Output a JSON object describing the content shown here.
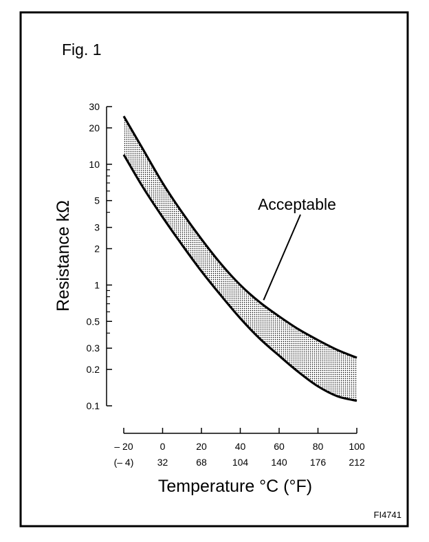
{
  "figure_label": "Fig. 1",
  "figure_code": "FI4741",
  "chart_data": {
    "type": "area",
    "title": "",
    "ylabel": "Resistance kΩ",
    "xlabel": "Temperature °C (°F)",
    "yscale": "log",
    "ylim": [
      0.1,
      30
    ],
    "xlim": [
      -20,
      100
    ],
    "y_tick_labels": [
      "30",
      "20",
      "10",
      "5",
      "3",
      "2",
      "1",
      "0.5",
      "0.3",
      "0.2",
      "0.1"
    ],
    "y_tick_values": [
      30,
      20,
      10,
      5,
      3,
      2,
      1,
      0.5,
      0.3,
      0.2,
      0.1
    ],
    "y_minor_values": [
      9,
      8,
      7,
      6,
      4,
      0.9,
      0.8,
      0.7,
      0.6,
      0.4
    ],
    "x_tick_values": [
      -20,
      0,
      20,
      40,
      60,
      80,
      100
    ],
    "x_tick_labels_c": [
      "– 20",
      "0",
      "20",
      "40",
      "60",
      "80",
      "100"
    ],
    "x_tick_labels_f": [
      "(– 4)",
      "32",
      "68",
      "104",
      "140",
      "176",
      "212"
    ],
    "annotation": "Acceptable",
    "annotation_target": {
      "x": 52,
      "y": 0.75
    },
    "series": [
      {
        "name": "upper",
        "x": [
          -20,
          -10,
          0,
          10,
          20,
          30,
          40,
          50,
          60,
          70,
          80,
          90,
          100
        ],
        "values": [
          25,
          13.2,
          7.0,
          4.0,
          2.4,
          1.5,
          1.0,
          0.72,
          0.55,
          0.43,
          0.35,
          0.29,
          0.25
        ]
      },
      {
        "name": "lower",
        "x": [
          -20,
          -10,
          0,
          10,
          20,
          30,
          40,
          50,
          60,
          70,
          80,
          90,
          100
        ],
        "values": [
          12,
          6.4,
          3.65,
          2.15,
          1.3,
          0.82,
          0.53,
          0.36,
          0.26,
          0.19,
          0.145,
          0.12,
          0.11
        ]
      }
    ]
  }
}
